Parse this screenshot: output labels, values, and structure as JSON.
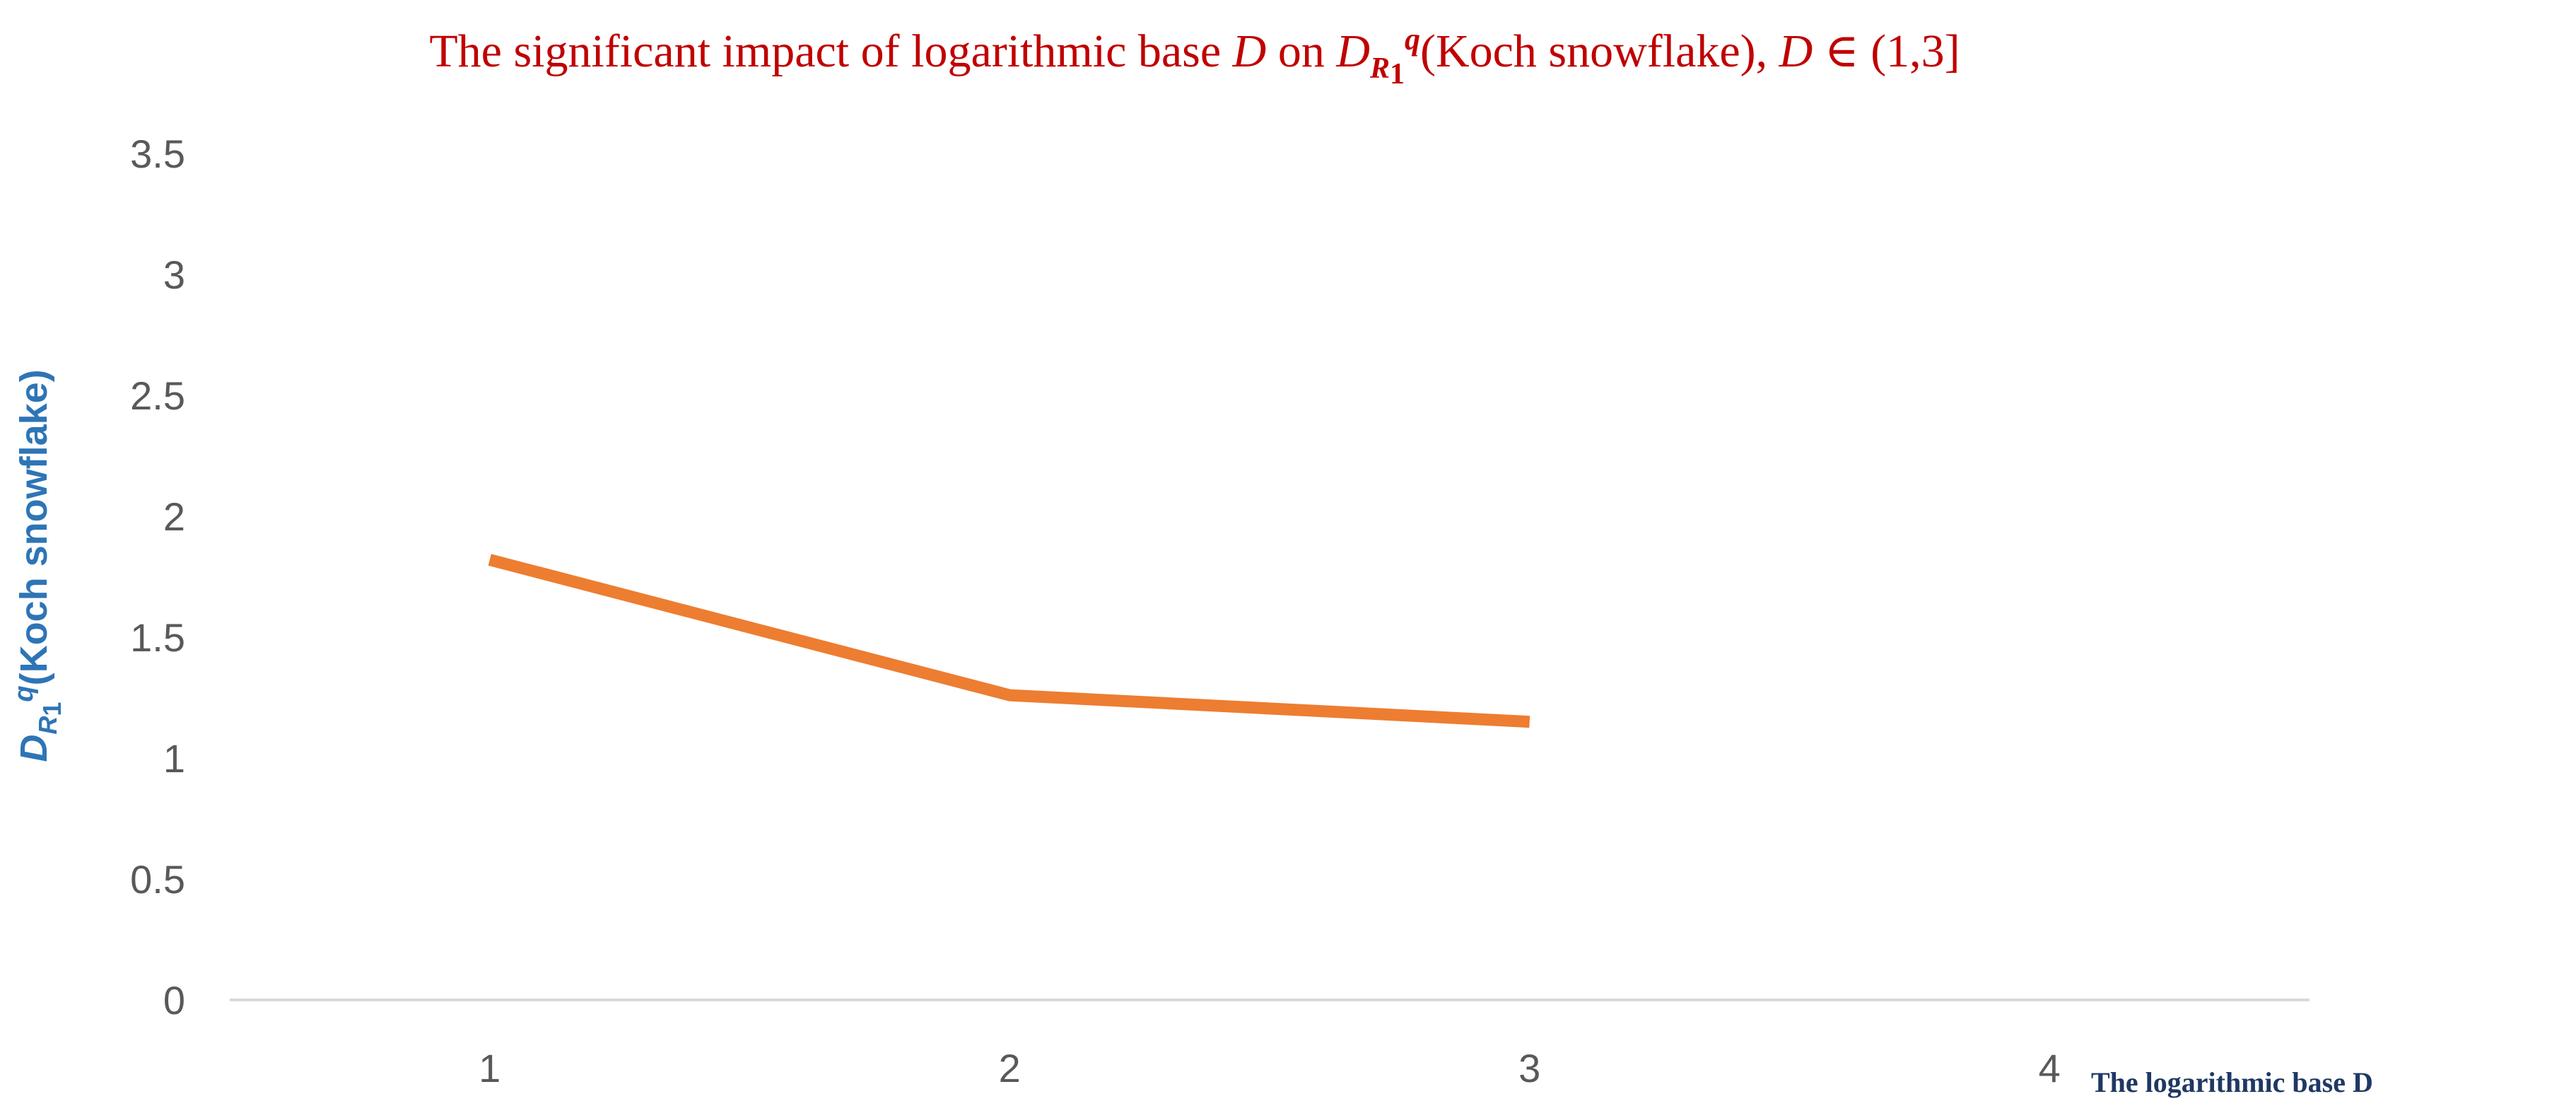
{
  "chart_data": {
    "type": "line",
    "title": {
      "part1": "The significant impact of  logarithmic base ",
      "var1": "D",
      "part2": " on  ",
      "var2": "D",
      "subscript_var": "R",
      "subscript_index": "1",
      "superscript": "q",
      "part3": "(Koch snowflake), ",
      "var3": "D",
      "part4": " ∈ (1,3]"
    },
    "ylabel": {
      "var": "D",
      "subscript_var": "R",
      "subscript_index": "1",
      "superscript": "q",
      "text": "(Koch snowflake)"
    },
    "xlabel": "The logarithmic base D",
    "x_ticks": [
      "1",
      "2",
      "3",
      "4"
    ],
    "y_ticks": [
      "0",
      "0.5",
      "1",
      "1.5",
      "2",
      "2.5",
      "3",
      "3.5"
    ],
    "xlim": [
      0.5,
      4.5
    ],
    "ylim": [
      0,
      3.5
    ],
    "grid": false,
    "series": [
      {
        "x": [
          1,
          2,
          3
        ],
        "y": [
          1.82,
          1.26,
          1.15
        ]
      }
    ],
    "colors": {
      "title": "#c00000",
      "ylabel": "#2e75b6",
      "xlabel": "#1f3864",
      "line": "#ed7d31",
      "axis": "#d9d9d9",
      "tick_label": "#595959"
    }
  }
}
